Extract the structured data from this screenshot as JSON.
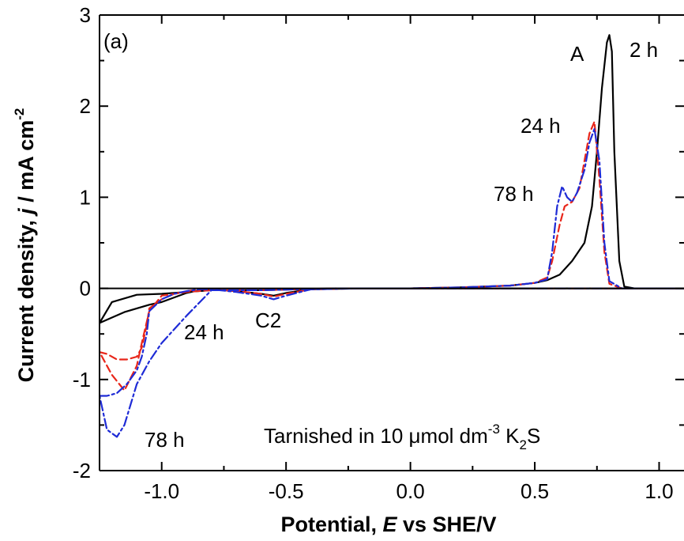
{
  "chart_data": {
    "type": "line",
    "panel_label": "(a)",
    "xlabel": {
      "prefix": "Potential, ",
      "var": "E",
      "suffix": " vs SHE/V"
    },
    "ylabel": {
      "prefix": "Current density, ",
      "var": "j",
      "suffix": " / mA cm",
      "sup": "-2"
    },
    "xlim": [
      -1.25,
      1.1
    ],
    "ylim": [
      -2,
      3
    ],
    "x_ticks": [
      -1.0,
      -0.5,
      0.0,
      0.5,
      1.0
    ],
    "x_tick_labels": [
      "-1.0",
      "-0.5",
      "0.0",
      "0.5",
      "1.0"
    ],
    "y_ticks": [
      -2,
      -1,
      0,
      1,
      2,
      3
    ],
    "y_tick_labels": [
      "-2",
      "-1",
      "0",
      "1",
      "2",
      "3"
    ],
    "legend": "none",
    "grid": false,
    "zero_line": true,
    "annotations": [
      {
        "id": "peak-a",
        "text": "A"
      },
      {
        "id": "label-2h",
        "text": "2 h"
      },
      {
        "id": "label-24h-anodic",
        "text": "24 h"
      },
      {
        "id": "label-78h-anodic",
        "text": "78 h"
      },
      {
        "id": "label-24h-cathodic",
        "text": "24 h"
      },
      {
        "id": "peak-c2",
        "text": "C2"
      },
      {
        "id": "label-78h-cathodic",
        "text": "78 h"
      }
    ],
    "caption": {
      "prefix": "Tarnished in 10 μmol dm",
      "sup": "-3",
      "mid": " K",
      "sub": "2",
      "suffix": "S"
    },
    "series": [
      {
        "name": "2 h",
        "color": "#000000",
        "dash": "solid",
        "x": [
          -1.25,
          -1.2,
          -1.15,
          -1.1,
          -1.05,
          -1.0,
          -0.95,
          -0.9,
          -0.85,
          -0.8,
          -0.7,
          -0.6,
          -0.55,
          -0.5,
          -0.4,
          -0.2,
          0.0,
          0.2,
          0.4,
          0.5,
          0.55,
          0.6,
          0.65,
          0.7,
          0.73,
          0.75,
          0.77,
          0.79,
          0.8,
          0.81,
          0.82,
          0.84,
          0.86,
          0.9,
          1.1,
          0.9,
          0.6,
          0.3,
          0.0,
          -0.3,
          -0.6,
          -0.8,
          -0.9,
          -1.0,
          -1.1,
          -1.2,
          -1.25
        ],
        "y": [
          -0.38,
          -0.32,
          -0.26,
          -0.22,
          -0.18,
          -0.15,
          -0.1,
          -0.05,
          -0.02,
          -0.01,
          -0.03,
          -0.06,
          -0.08,
          -0.05,
          -0.01,
          0.0,
          0.0,
          0.01,
          0.03,
          0.06,
          0.09,
          0.15,
          0.3,
          0.5,
          0.9,
          1.5,
          2.2,
          2.7,
          2.78,
          2.6,
          1.5,
          0.3,
          0.02,
          0.0,
          0.0,
          0.0,
          0.0,
          0.0,
          0.0,
          0.0,
          -0.02,
          -0.02,
          -0.04,
          -0.06,
          -0.07,
          -0.15,
          -0.38
        ]
      },
      {
        "name": "24 h",
        "color": "#e8261a",
        "dash": "dashed",
        "x": [
          -1.25,
          -1.22,
          -1.18,
          -1.14,
          -1.1,
          -1.08,
          -1.06,
          -1.05,
          -1.0,
          -0.95,
          -0.9,
          -0.85,
          -0.8,
          -0.7,
          -0.6,
          -0.55,
          -0.5,
          -0.4,
          -0.2,
          0.0,
          0.2,
          0.4,
          0.5,
          0.55,
          0.57,
          0.6,
          0.62,
          0.65,
          0.68,
          0.7,
          0.72,
          0.74,
          0.76,
          0.78,
          0.8,
          0.85,
          0.9,
          1.1,
          0.9,
          0.6,
          0.3,
          0.0,
          -0.3,
          -0.6,
          -0.8,
          -0.9,
          -1.0,
          -1.05,
          -1.08,
          -1.1,
          -1.15,
          -1.2,
          -1.25
        ],
        "y": [
          -0.7,
          -0.72,
          -0.78,
          -0.78,
          -0.75,
          -0.65,
          -0.4,
          -0.22,
          -0.12,
          -0.06,
          -0.03,
          -0.01,
          -0.01,
          -0.03,
          -0.06,
          -0.09,
          -0.06,
          -0.01,
          0.0,
          0.0,
          0.01,
          0.03,
          0.06,
          0.12,
          0.3,
          0.7,
          0.9,
          0.95,
          1.1,
          1.4,
          1.7,
          1.83,
          1.2,
          0.4,
          0.05,
          0.0,
          0.0,
          0.0,
          0.0,
          0.0,
          0.0,
          0.0,
          0.0,
          -0.02,
          -0.02,
          -0.04,
          -0.08,
          -0.25,
          -0.6,
          -0.85,
          -1.12,
          -0.95,
          -0.7
        ]
      },
      {
        "name": "78 h",
        "color": "#1e2bd6",
        "dash": "dashdot",
        "x": [
          -1.25,
          -1.22,
          -1.18,
          -1.14,
          -1.1,
          -1.08,
          -1.06,
          -1.05,
          -1.0,
          -0.95,
          -0.9,
          -0.85,
          -0.8,
          -0.7,
          -0.6,
          -0.55,
          -0.5,
          -0.4,
          -0.2,
          0.0,
          0.2,
          0.4,
          0.5,
          0.55,
          0.57,
          0.59,
          0.61,
          0.63,
          0.65,
          0.67,
          0.7,
          0.72,
          0.74,
          0.76,
          0.78,
          0.8,
          0.85,
          0.9,
          1.1,
          0.9,
          0.6,
          0.3,
          0.0,
          -0.3,
          -0.6,
          -0.8,
          -0.9,
          -0.95,
          -1.0,
          -1.05,
          -1.1,
          -1.15,
          -1.18,
          -1.22,
          -1.25
        ],
        "y": [
          -1.18,
          -1.18,
          -1.15,
          -1.05,
          -0.9,
          -0.75,
          -0.5,
          -0.25,
          -0.12,
          -0.06,
          -0.03,
          -0.01,
          -0.01,
          -0.04,
          -0.08,
          -0.12,
          -0.08,
          -0.01,
          0.0,
          0.0,
          0.01,
          0.03,
          0.06,
          0.1,
          0.4,
          0.9,
          1.12,
          1.0,
          0.95,
          1.05,
          1.3,
          1.6,
          1.75,
          1.4,
          0.5,
          0.08,
          0.0,
          0.0,
          0.0,
          0.0,
          0.0,
          0.0,
          0.0,
          0.0,
          -0.02,
          -0.02,
          -0.3,
          -0.45,
          -0.6,
          -0.8,
          -1.05,
          -1.5,
          -1.63,
          -1.55,
          -1.18
        ]
      }
    ]
  }
}
